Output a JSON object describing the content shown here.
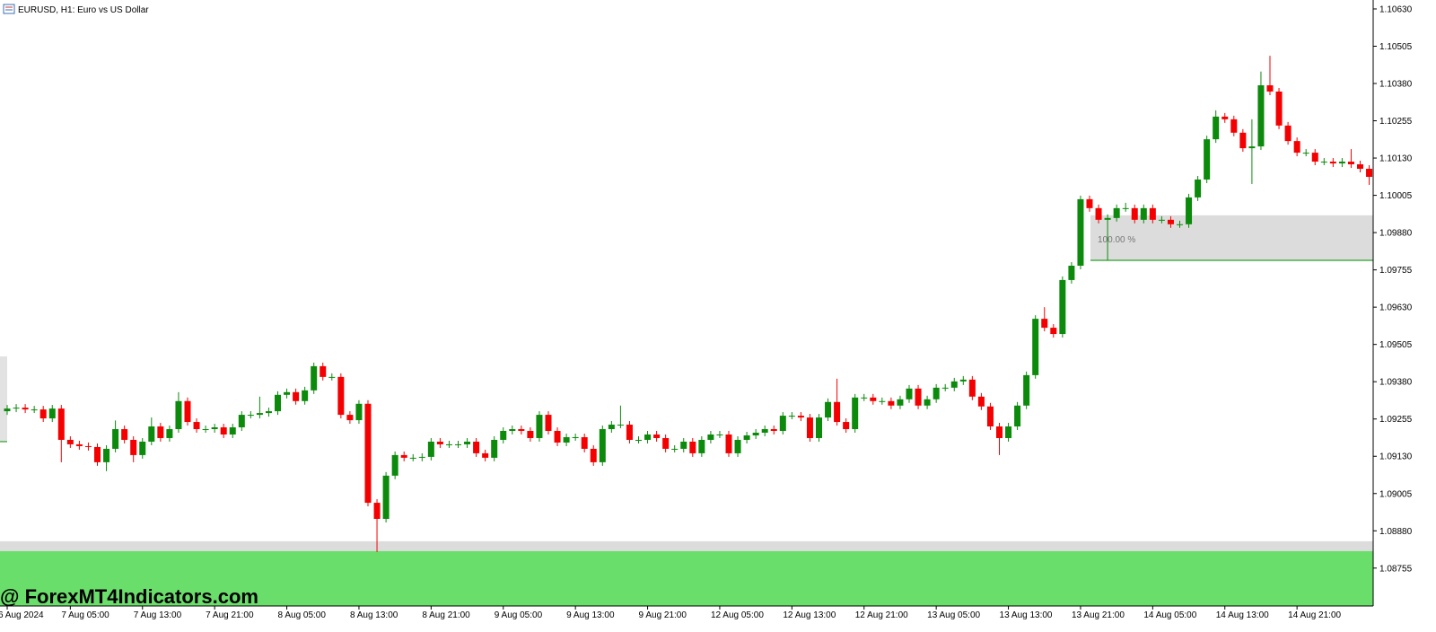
{
  "chart_data": {
    "type": "candlestick",
    "title": "EURUSD, H1:  Euro vs US Dollar",
    "watermark": "@ ForexMT4Indicators.com",
    "up_color": "#0b8a0b",
    "down_color": "#f40000",
    "categories": [
      "6 Aug 2024",
      null,
      null,
      null,
      null,
      null,
      null,
      "7 Aug 05:00",
      null,
      null,
      null,
      null,
      null,
      null,
      null,
      "7 Aug 13:00",
      null,
      null,
      null,
      null,
      null,
      null,
      null,
      "7 Aug 21:00",
      null,
      null,
      null,
      null,
      null,
      null,
      null,
      "8 Aug 05:00",
      null,
      null,
      null,
      null,
      null,
      null,
      null,
      "8 Aug 13:00",
      null,
      null,
      null,
      null,
      null,
      null,
      null,
      "8 Aug 21:00",
      null,
      null,
      null,
      null,
      null,
      null,
      null,
      "9 Aug 05:00",
      null,
      null,
      null,
      null,
      null,
      null,
      null,
      "9 Aug 13:00",
      null,
      null,
      null,
      null,
      null,
      null,
      null,
      "9 Aug 21:00",
      null,
      null,
      null,
      null,
      null,
      null,
      null,
      "12 Aug 05:00",
      null,
      null,
      null,
      null,
      null,
      null,
      null,
      "12 Aug 13:00",
      null,
      null,
      null,
      null,
      null,
      null,
      null,
      "12 Aug 21:00",
      null,
      null,
      null,
      null,
      null,
      null,
      null,
      "13 Aug 05:00",
      null,
      null,
      null,
      null,
      null,
      null,
      null,
      "13 Aug 13:00",
      null,
      null,
      null,
      null,
      null,
      null,
      null,
      "13 Aug 21:00",
      null,
      null,
      null,
      null,
      null,
      null,
      null,
      "14 Aug 05:00",
      null,
      null,
      null,
      null,
      null,
      null,
      null,
      "14 Aug 13:00",
      null,
      null,
      null,
      null,
      null,
      null,
      null,
      "14 Aug 21:00",
      null,
      null,
      null,
      null,
      null,
      null,
      null,
      null
    ],
    "open": [
      1.09281,
      1.0929,
      1.09293,
      1.09287,
      1.09287,
      1.09257,
      1.0929,
      1.09185,
      1.0917,
      1.09164,
      1.09161,
      1.0911,
      1.09155,
      1.09221,
      1.09185,
      1.09134,
      1.09179,
      1.0923,
      1.09191,
      1.09221,
      1.09315,
      1.09245,
      1.09221,
      1.09221,
      1.09227,
      1.09203,
      1.09227,
      1.09269,
      1.09269,
      1.09275,
      1.09281,
      1.09336,
      1.09345,
      1.09315,
      1.09351,
      1.09432,
      1.09396,
      1.09396,
      1.09269,
      1.09251,
      1.09306,
      1.08974,
      1.0892,
      1.09065,
      1.09134,
      1.09125,
      1.09125,
      1.09128,
      1.09179,
      1.0917,
      1.0917,
      1.0917,
      1.09179,
      1.0914,
      1.09125,
      1.09185,
      1.09215,
      1.09221,
      1.09215,
      1.09191,
      1.09269,
      1.09215,
      1.09176,
      1.09194,
      1.09194,
      1.09155,
      1.0911,
      1.09221,
      1.09236,
      1.09236,
      1.09185,
      1.09185,
      1.09203,
      1.09191,
      1.09155,
      1.09155,
      1.09179,
      1.0914,
      1.09185,
      1.09203,
      1.09203,
      1.0914,
      1.09185,
      1.092,
      1.09209,
      1.09221,
      1.09215,
      1.09266,
      1.09266,
      1.0926,
      1.09191,
      1.0926,
      1.09312,
      1.09245,
      1.09221,
      1.09327,
      1.09327,
      1.09315,
      1.09315,
      1.093,
      1.09321,
      1.09357,
      1.093,
      1.09321,
      1.0936,
      1.0936,
      1.09381,
      1.09387,
      1.0933,
      1.09297,
      1.0923,
      1.09191,
      1.0923,
      1.093,
      1.09402,
      1.09591,
      1.09561,
      1.0954,
      1.09721,
      1.09769,
      1.09992,
      1.09962,
      1.09923,
      1.09929,
      1.09962,
      1.09962,
      1.09923,
      1.09962,
      1.09923,
      1.09923,
      1.09908,
      1.09908,
      1.09998,
      1.10058,
      1.10193,
      1.10269,
      1.1026,
      1.10215,
      1.10163,
      1.10169,
      1.10374,
      1.10353,
      1.10239,
      1.10187,
      1.10148,
      1.10148,
      1.10118,
      1.10118,
      1.10112,
      1.10118,
      1.10109,
      1.10094
    ],
    "high": [
      1.09302,
      1.09305,
      1.09305,
      1.09299,
      1.09299,
      1.09302,
      1.09302,
      1.09197,
      1.09182,
      1.09176,
      1.09173,
      1.09167,
      1.0925,
      1.09233,
      1.09197,
      1.09191,
      1.0926,
      1.09242,
      1.09233,
      1.09345,
      1.09327,
      1.09257,
      1.09233,
      1.09239,
      1.09239,
      1.09239,
      1.09281,
      1.09281,
      1.0933,
      1.09293,
      1.09348,
      1.09357,
      1.09357,
      1.09363,
      1.09444,
      1.09444,
      1.09408,
      1.09408,
      1.09281,
      1.09318,
      1.09318,
      1.08986,
      1.09077,
      1.09146,
      1.09146,
      1.09137,
      1.0914,
      1.09191,
      1.09191,
      1.09182,
      1.09182,
      1.09191,
      1.09191,
      1.09152,
      1.09197,
      1.09227,
      1.09233,
      1.09233,
      1.09227,
      1.09281,
      1.09281,
      1.09227,
      1.09206,
      1.09206,
      1.09206,
      1.09167,
      1.09233,
      1.09248,
      1.093,
      1.09248,
      1.09197,
      1.09215,
      1.09215,
      1.09203,
      1.09167,
      1.09191,
      1.09191,
      1.09197,
      1.09215,
      1.09215,
      1.09215,
      1.09197,
      1.09212,
      1.09221,
      1.09233,
      1.09233,
      1.09278,
      1.09278,
      1.09278,
      1.09272,
      1.09272,
      1.09324,
      1.0939,
      1.09257,
      1.09339,
      1.09339,
      1.09339,
      1.09327,
      1.09327,
      1.09333,
      1.09369,
      1.09369,
      1.09333,
      1.09372,
      1.09372,
      1.09393,
      1.09399,
      1.09399,
      1.09342,
      1.09309,
      1.09242,
      1.09242,
      1.09312,
      1.09414,
      1.09603,
      1.0963,
      1.09573,
      1.09733,
      1.09781,
      1.10004,
      1.10004,
      1.09974,
      1.09941,
      1.09974,
      1.0998,
      1.09974,
      1.09974,
      1.09974,
      1.09935,
      1.09935,
      1.0992,
      1.1001,
      1.1007,
      1.10205,
      1.1029,
      1.10281,
      1.10272,
      1.10227,
      1.1026,
      1.1042,
      1.10473,
      1.10365,
      1.10251,
      1.10199,
      1.1016,
      1.1016,
      1.1013,
      1.1013,
      1.1013,
      1.1016,
      1.10121,
      1.10106
    ],
    "low": [
      1.09269,
      1.09278,
      1.09275,
      1.09275,
      1.09245,
      1.09245,
      1.0911,
      1.09158,
      1.09152,
      1.09149,
      1.09098,
      1.0908,
      1.09143,
      1.09173,
      1.0911,
      1.09122,
      1.09167,
      1.09179,
      1.09179,
      1.09209,
      1.09233,
      1.09209,
      1.09209,
      1.09209,
      1.09191,
      1.09191,
      1.09215,
      1.09257,
      1.09257,
      1.09263,
      1.09269,
      1.09324,
      1.09303,
      1.09303,
      1.09339,
      1.09384,
      1.09384,
      1.09257,
      1.09239,
      1.09239,
      1.08962,
      1.08809,
      1.08908,
      1.09053,
      1.09113,
      1.09113,
      1.09113,
      1.09116,
      1.09158,
      1.09158,
      1.09158,
      1.09158,
      1.09128,
      1.09113,
      1.09113,
      1.09173,
      1.09203,
      1.09203,
      1.09179,
      1.09179,
      1.09203,
      1.09164,
      1.09164,
      1.09182,
      1.09143,
      1.09098,
      1.09098,
      1.09209,
      1.09224,
      1.09173,
      1.09173,
      1.09173,
      1.09179,
      1.09143,
      1.09143,
      1.09143,
      1.09128,
      1.09128,
      1.09173,
      1.09191,
      1.09128,
      1.09128,
      1.09173,
      1.09188,
      1.09197,
      1.09203,
      1.09203,
      1.09254,
      1.09248,
      1.09179,
      1.09179,
      1.09248,
      1.09233,
      1.09209,
      1.09209,
      1.09315,
      1.09303,
      1.09303,
      1.09288,
      1.09288,
      1.09309,
      1.09288,
      1.09288,
      1.09309,
      1.09348,
      1.09348,
      1.09369,
      1.09318,
      1.09285,
      1.09218,
      1.09134,
      1.09179,
      1.09218,
      1.09288,
      1.0939,
      1.09549,
      1.09528,
      1.09528,
      1.09709,
      1.09757,
      1.0995,
      1.09911,
      1.09787,
      1.09917,
      1.0995,
      1.09911,
      1.09911,
      1.09911,
      1.09911,
      1.09896,
      1.09896,
      1.09896,
      1.09986,
      1.10046,
      1.10181,
      1.10248,
      1.10203,
      1.10151,
      1.10043,
      1.10157,
      1.10341,
      1.10227,
      1.10175,
      1.10136,
      1.10136,
      1.10106,
      1.10106,
      1.101,
      1.101,
      1.10097,
      1.10082,
      1.1004
    ],
    "close": [
      1.0929,
      1.09293,
      1.09287,
      1.09287,
      1.09257,
      1.0929,
      1.09185,
      1.0917,
      1.09164,
      1.09161,
      1.0911,
      1.09155,
      1.09221,
      1.09185,
      1.09134,
      1.09179,
      1.0923,
      1.09191,
      1.09221,
      1.09315,
      1.09245,
      1.09221,
      1.09221,
      1.09227,
      1.09203,
      1.09227,
      1.09269,
      1.09269,
      1.09275,
      1.09281,
      1.09336,
      1.09345,
      1.09315,
      1.09351,
      1.09432,
      1.09396,
      1.09396,
      1.09269,
      1.09251,
      1.09306,
      1.08974,
      1.0892,
      1.09065,
      1.09134,
      1.09125,
      1.09125,
      1.09128,
      1.09179,
      1.0917,
      1.0917,
      1.0917,
      1.09179,
      1.0914,
      1.09125,
      1.09185,
      1.09215,
      1.09221,
      1.09215,
      1.09191,
      1.09269,
      1.09215,
      1.09176,
      1.09194,
      1.09194,
      1.09155,
      1.0911,
      1.09221,
      1.09236,
      1.09236,
      1.09185,
      1.09185,
      1.09203,
      1.09191,
      1.09155,
      1.09155,
      1.09179,
      1.0914,
      1.09185,
      1.09203,
      1.09203,
      1.0914,
      1.09185,
      1.092,
      1.09209,
      1.09221,
      1.09215,
      1.09266,
      1.09266,
      1.0926,
      1.09191,
      1.0926,
      1.09312,
      1.09245,
      1.09221,
      1.09327,
      1.09327,
      1.09315,
      1.09315,
      1.093,
      1.09321,
      1.09357,
      1.093,
      1.09321,
      1.0936,
      1.0936,
      1.09381,
      1.09387,
      1.0933,
      1.09297,
      1.0923,
      1.09191,
      1.0923,
      1.093,
      1.09402,
      1.09591,
      1.09561,
      1.0954,
      1.09721,
      1.09769,
      1.09992,
      1.09962,
      1.09923,
      1.09929,
      1.09962,
      1.09962,
      1.09923,
      1.09962,
      1.09923,
      1.09923,
      1.09908,
      1.09908,
      1.09998,
      1.10058,
      1.10193,
      1.10269,
      1.1026,
      1.10215,
      1.10163,
      1.10169,
      1.10374,
      1.10353,
      1.10239,
      1.10187,
      1.10148,
      1.10148,
      1.10118,
      1.10118,
      1.10112,
      1.10118,
      1.10109,
      1.10094,
      1.10067
    ],
    "ylim": [
      1.08628,
      1.1066
    ],
    "yticks": [
      {
        "value": 1.1063,
        "label": "1.10630"
      },
      1.10505,
      {
        "value": 1.1038,
        "label": "1.10380"
      },
      1.10255,
      {
        "value": 1.1013,
        "label": "1.10130"
      },
      1.10005,
      {
        "value": 1.0988,
        "label": "1.09880"
      },
      1.09755,
      {
        "value": 1.0963,
        "label": "1.09630"
      },
      1.09505,
      {
        "value": 1.0938,
        "label": "1.09380"
      },
      1.09255,
      {
        "value": 1.0913,
        "label": "1.09130"
      },
      1.09005,
      {
        "value": 1.0888,
        "label": "1.08880"
      },
      1.08755
    ],
    "zones": [
      {
        "low": 1.09787,
        "high": 1.09938,
        "color": "#dcdcdc",
        "line_color": "#2ca02c",
        "label": "100.00 %"
      },
      {
        "low": 1.08812,
        "high": 1.08845,
        "color": "#dcdcdc"
      },
      {
        "low": 1.08628,
        "high": 1.08812,
        "color": "#6ade6a"
      },
      {
        "low": 1.09179,
        "high": 1.09465,
        "color": "#e2e2e2",
        "line_color": "#2ca02c"
      }
    ]
  }
}
